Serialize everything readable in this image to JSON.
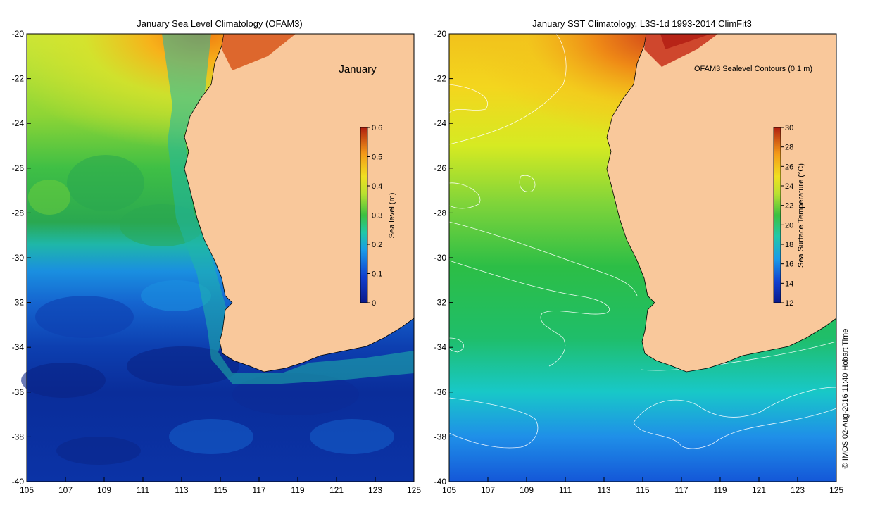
{
  "left_panel": {
    "title": "January Sea Level Climatology (OFAM3)",
    "annotation": "January",
    "colorbar": {
      "label": "Sea level (m)",
      "ticks": [
        "0",
        "0.1",
        "0.2",
        "0.3",
        "0.4",
        "0.5",
        "0.6"
      ],
      "range": [
        0,
        0.6
      ]
    }
  },
  "right_panel": {
    "title": "January SST Climatology, L3S-1d 1993-2014 ClimFit3",
    "annotation": "OFAM3 Sealevel Contours (0.1 m)",
    "colorbar": {
      "label": "Sea Surface Temperature (°C)",
      "ticks": [
        "12",
        "14",
        "16",
        "18",
        "20",
        "22",
        "24",
        "26",
        "28",
        "30"
      ],
      "range": [
        12,
        30
      ]
    }
  },
  "axes": {
    "lon_ticks": [
      "105",
      "107",
      "109",
      "111",
      "113",
      "115",
      "117",
      "119",
      "121",
      "123",
      "125"
    ],
    "lat_ticks": [
      "-20",
      "-22",
      "-24",
      "-26",
      "-28",
      "-30",
      "-32",
      "-34",
      "-36",
      "-38",
      "-40"
    ],
    "lon_range": [
      105,
      125
    ],
    "lat_range": [
      -40,
      -20
    ]
  },
  "credit": "© IMOS 02-Aug-2016 11:40 Hobart Time",
  "colors": {
    "land": "#f9c89b",
    "coast": "#000000",
    "contour": "#ffffff"
  }
}
